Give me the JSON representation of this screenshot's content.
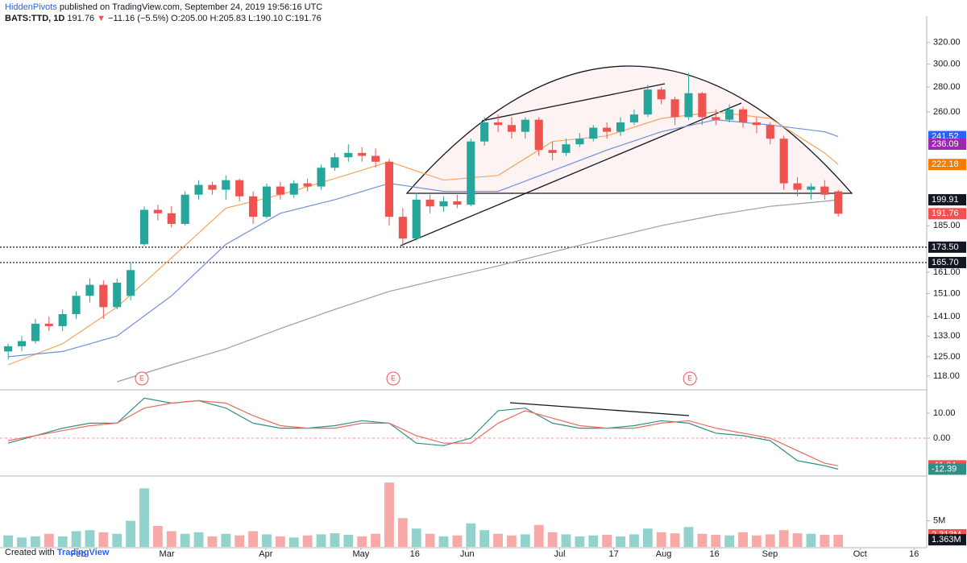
{
  "header": {
    "author": "HiddenPivots",
    "published": "published on TradingView.com, September 24, 2019 19:56:16 UTC",
    "symbol": "BATS:TTD, 1D",
    "last": "191.76",
    "arrow": "▼",
    "change": "−11.16 (−5.5%)",
    "ohlc": "O:205.00 H:205.83 L:190.10 C:191.76"
  },
  "footer": {
    "created": "Created with",
    "brand": "TradingView"
  },
  "chart_data": [
    {
      "type": "candlestick",
      "log": true,
      "grid": false,
      "up_color": "#26a69a",
      "down_color": "#ef5350",
      "xlim": [
        -0.6,
        67.5
      ],
      "xticks": [
        {
          "value": 5.15,
          "label": "Feb"
        },
        {
          "value": 11.66,
          "label": "Mar"
        },
        {
          "value": 18.93,
          "label": "Apr"
        },
        {
          "value": 25.92,
          "label": "May"
        },
        {
          "value": 29.88,
          "label": "16"
        },
        {
          "value": 33.73,
          "label": "Jun"
        },
        {
          "value": 40.53,
          "label": "Jul"
        },
        {
          "value": 44.5,
          "label": "17"
        },
        {
          "value": 48.17,
          "label": "Aug"
        },
        {
          "value": 51.9,
          "label": "16"
        },
        {
          "value": 55.98,
          "label": "Sep"
        },
        {
          "value": 62.6,
          "label": "Oct"
        },
        {
          "value": 66.57,
          "label": "16"
        }
      ],
      "ylim": [
        113.5,
        331.6
      ],
      "yticks": [
        {
          "value": 320,
          "label": "320.00"
        },
        {
          "value": 300,
          "label": "300.00"
        },
        {
          "value": 280,
          "label": "280.00"
        },
        {
          "value": 260,
          "label": "260.00"
        },
        {
          "value": 185,
          "label": "185.00"
        },
        {
          "value": 161,
          "label": "161.00"
        },
        {
          "value": 151,
          "label": "151.00"
        },
        {
          "value": 141,
          "label": "141.00"
        },
        {
          "value": 133,
          "label": "133.00"
        },
        {
          "value": 125,
          "label": "125.00"
        },
        {
          "value": 118,
          "label": "118.00"
        }
      ],
      "open": [
        127,
        129,
        131,
        138,
        137,
        142,
        150,
        155,
        145,
        150,
        175,
        194,
        192,
        186,
        203,
        209,
        206,
        212,
        202,
        190,
        208,
        203,
        210,
        208,
        220,
        227,
        230,
        228,
        224,
        190,
        178,
        200,
        196,
        199,
        197,
        238,
        252,
        250,
        245,
        254,
        232,
        230,
        236,
        240,
        248,
        245,
        252,
        258,
        278,
        270,
        256,
        275,
        256,
        254,
        262,
        252,
        250,
        240,
        210,
        206,
        208,
        205
      ],
      "high": [
        130,
        133,
        140,
        141,
        144,
        152,
        158,
        157,
        158,
        166,
        196,
        197,
        196,
        205,
        212,
        211,
        215,
        213,
        205,
        210,
        211,
        212,
        213,
        222,
        230,
        236,
        234,
        233,
        226,
        195,
        204,
        203,
        202,
        203,
        240,
        256,
        258,
        256,
        256,
        256,
        238,
        240,
        244,
        250,
        252,
        256,
        262,
        282,
        280,
        272,
        292,
        276,
        262,
        266,
        264,
        256,
        252,
        242,
        214,
        210,
        212,
        205.83
      ],
      "low": [
        124,
        127,
        130,
        135,
        135,
        140,
        147,
        140,
        144,
        148,
        174,
        188,
        184,
        185,
        200,
        203,
        200,
        199,
        186,
        189,
        200,
        201,
        205,
        206,
        218,
        224,
        224,
        220,
        185,
        173.5,
        177,
        192,
        193,
        195,
        196,
        235,
        245,
        240,
        240,
        228,
        225,
        228,
        234,
        238,
        240,
        242,
        250,
        256,
        266,
        250,
        254,
        250,
        250,
        252,
        248,
        244,
        236,
        206,
        202,
        200,
        200,
        190.1
      ],
      "close": [
        129,
        131,
        138,
        137,
        142,
        150,
        155,
        145,
        156,
        162,
        194,
        192,
        186,
        203,
        209,
        206,
        212,
        202,
        190,
        208,
        203,
        210,
        208,
        220,
        227,
        230,
        228,
        224,
        190,
        178,
        200,
        196,
        199,
        197,
        238,
        252,
        250,
        245,
        254,
        232,
        230,
        236,
        240,
        248,
        245,
        252,
        258,
        278,
        270,
        256,
        275,
        256,
        254,
        262,
        252,
        250,
        240,
        210,
        206,
        208,
        203,
        191.76
      ],
      "lines": [
        {
          "color": "#f4a460",
          "x": [
            0,
            4,
            8,
            12,
            16,
            20,
            24,
            28,
            32,
            36,
            40,
            44,
            48,
            52,
            56,
            60,
            61
          ],
          "values": [
            122,
            130,
            145,
            168,
            195,
            203,
            213,
            224,
            212,
            215,
            238,
            242,
            255,
            260,
            255,
            230,
            222.18
          ]
        },
        {
          "color": "#6f8fd8",
          "x": [
            0,
            4,
            8,
            12,
            16,
            20,
            24,
            28,
            32,
            36,
            40,
            44,
            48,
            52,
            56,
            60,
            61
          ],
          "values": [
            125,
            127,
            133,
            150,
            175,
            192,
            200,
            210,
            205,
            205,
            218,
            232,
            245,
            254,
            250,
            245,
            241.52
          ]
        },
        {
          "color": "#9e9e9e",
          "x": [
            0,
            4,
            8,
            12,
            16,
            20,
            24,
            28,
            32,
            36,
            40,
            44,
            48,
            52,
            56,
            60,
            61
          ],
          "values": [
            null,
            null,
            116,
            122,
            128,
            136,
            144,
            152,
            158,
            164,
            171,
            178,
            185,
            191,
            196,
            199,
            199.91
          ]
        }
      ],
      "hlines": [
        {
          "value": 173.5,
          "label": "173.50"
        },
        {
          "value": 165.7,
          "label": "165.70"
        }
      ],
      "price_labels": [
        {
          "value": 241.52,
          "label": "241.52",
          "color": "#2962ff"
        },
        {
          "value": 236.09,
          "label": "236.09",
          "color": "#9c27b0"
        },
        {
          "value": 222.18,
          "label": "222.18",
          "color": "#f57c00"
        },
        {
          "value": 199.91,
          "label": "199.91",
          "color": "#131722"
        },
        {
          "value": 191.76,
          "label": "191.76",
          "color": "#ef5350"
        }
      ],
      "events": [
        {
          "x": 9.82,
          "label": "E"
        },
        {
          "x": 28.3,
          "label": "E"
        },
        {
          "x": 50.1,
          "label": "E"
        }
      ]
    },
    {
      "type": "macd",
      "zero_line": true,
      "ylim": [
        -14.8,
        19
      ],
      "yticks": [
        {
          "value": 10,
          "label": "10.00"
        },
        {
          "value": 0,
          "label": "0.00"
        }
      ],
      "series": [
        {
          "color": "#2f8f88",
          "x": [
            0,
            2,
            4,
            6,
            8,
            10,
            12,
            14,
            16,
            18,
            20,
            22,
            24,
            26,
            28,
            30,
            32,
            34,
            36,
            38,
            40,
            42,
            44,
            46,
            48,
            50,
            52,
            54,
            56,
            58,
            60,
            61
          ],
          "values": [
            -2,
            1,
            4,
            6,
            6,
            16,
            14,
            15,
            12,
            6,
            4,
            4,
            5,
            7,
            6,
            -2,
            -3,
            0,
            11,
            12,
            6,
            4,
            4,
            5,
            7,
            6,
            2,
            1,
            -1,
            -9,
            -11,
            -12.39
          ]
        },
        {
          "color": "#e96b5e",
          "x": [
            0,
            2,
            4,
            6,
            8,
            10,
            12,
            14,
            16,
            18,
            20,
            22,
            24,
            26,
            28,
            30,
            32,
            34,
            36,
            38,
            40,
            42,
            44,
            46,
            48,
            50,
            52,
            54,
            56,
            58,
            60,
            61
          ],
          "values": [
            -1,
            1,
            3,
            5,
            6,
            12,
            14,
            15,
            14,
            9,
            5,
            4,
            4,
            6,
            6,
            1,
            -2,
            -2,
            6,
            11,
            8,
            5,
            4,
            4,
            6,
            7,
            4,
            2,
            0,
            -5,
            -10,
            -11.04
          ]
        }
      ],
      "price_labels": [
        {
          "value": -11.04,
          "label": "-11.04",
          "color": "#ef5350"
        },
        {
          "value": -12.39,
          "label": "-12.39",
          "color": "#2f8f88"
        }
      ]
    },
    {
      "type": "volume",
      "ylim": [
        0,
        13.4
      ],
      "yticks": [
        {
          "value": 5,
          "label": "5M"
        }
      ],
      "values": [
        2.2,
        1.8,
        2.0,
        2.5,
        2.0,
        3.0,
        3.2,
        2.8,
        2.5,
        5.0,
        11.2,
        4,
        3,
        2.5,
        2.8,
        2,
        2.5,
        2.2,
        3.0,
        2.4,
        2,
        1.8,
        2.2,
        2.4,
        2.6,
        2.3,
        2,
        2.5,
        12.3,
        5.5,
        3.5,
        2.5,
        2,
        2.2,
        4.5,
        3.2,
        2.5,
        2.2,
        2.4,
        4.2,
        2.8,
        2.4,
        2,
        2.2,
        2.3,
        2,
        2.4,
        3.5,
        2.8,
        2.6,
        3.8,
        2.5,
        2.3,
        2.2,
        2.8,
        2.2,
        2.4,
        3.2,
        2.6,
        2.5,
        2.3,
        2.313
      ],
      "price_labels": [
        {
          "value": 2.313,
          "label": "2.313M",
          "color": "#ef5350"
        },
        {
          "value": 1.363,
          "label": "1.363M",
          "color": "#131722"
        }
      ]
    }
  ]
}
